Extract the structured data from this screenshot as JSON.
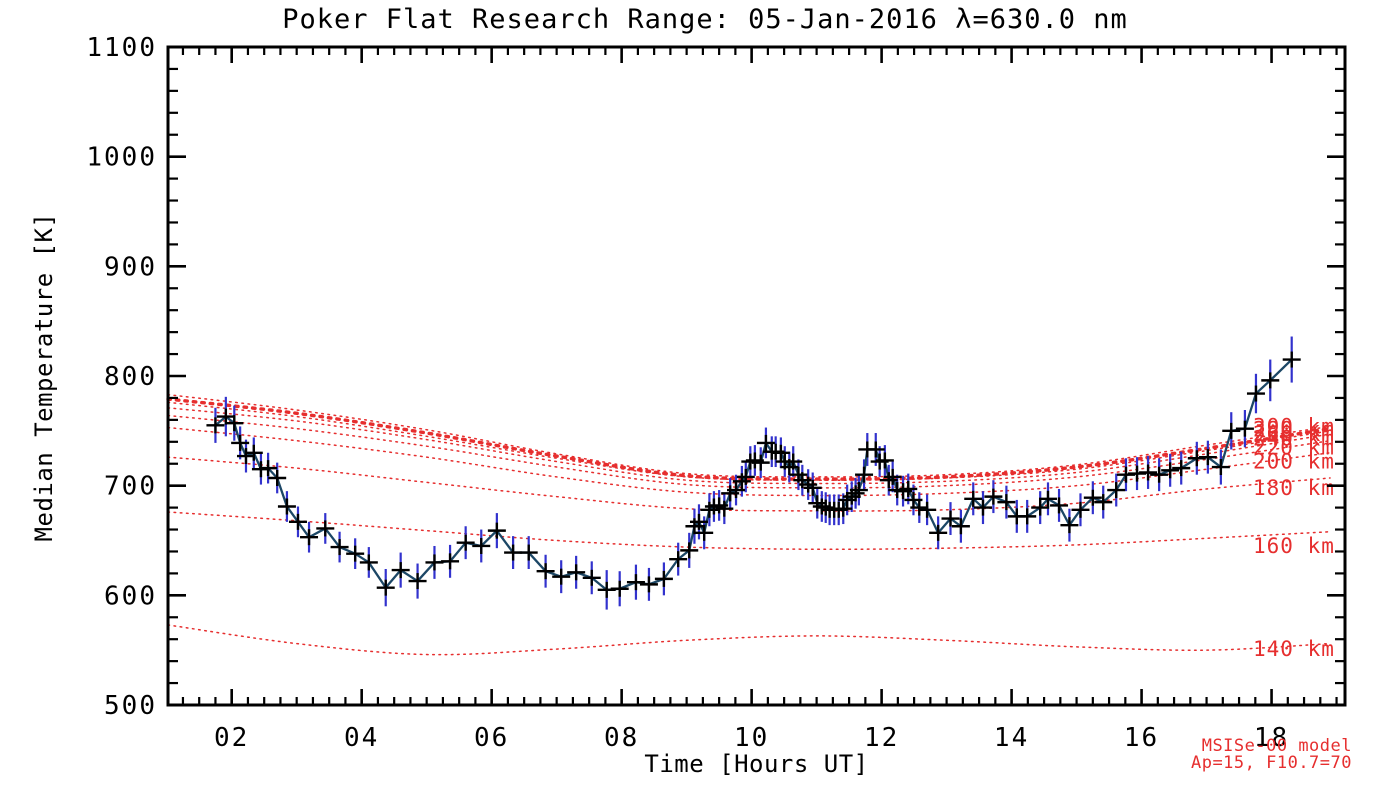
{
  "chart_data": {
    "type": "line",
    "title": "Poker Flat Research Range: 05-Jan-2016 λ=630.0 nm",
    "xlabel": "Time [Hours UT]",
    "ylabel": "Median Temperature [K]",
    "xlim": [
      1.02,
      19.13
    ],
    "ylim": [
      500,
      1100
    ],
    "x_major_ticks": [
      2,
      4,
      6,
      8,
      10,
      12,
      14,
      16,
      18
    ],
    "x_tick_labels": [
      "02",
      "04",
      "06",
      "08",
      "10",
      "12",
      "14",
      "16",
      "18"
    ],
    "x_minor_step": 0.25,
    "y_major_step": 100,
    "y_minor_step": 20,
    "y_tick_labels": [
      "500",
      "600",
      "700",
      "800",
      "900",
      "1000",
      "1100"
    ],
    "grid": false,
    "legend_position": "none",
    "colors": {
      "axis": "#000000",
      "data_line": "#1c4766",
      "marker": "#000000",
      "error_bar": "#3232cd",
      "model": "#e62e2e"
    },
    "annotations": [
      "MSISe-00 model",
      "Ap=15, F10.7=70"
    ],
    "series": [
      {
        "name": "Median temperature (630.0 nm)",
        "marker": "plus",
        "points_format": [
          "hours_ut",
          "temperature_K",
          "error_K"
        ],
        "points": [
          [
            1.75,
            755,
            16
          ],
          [
            1.91,
            763,
            18
          ],
          [
            2.04,
            757,
            16
          ],
          [
            2.13,
            739,
            15
          ],
          [
            2.22,
            727,
            15
          ],
          [
            2.34,
            730,
            14
          ],
          [
            2.45,
            715,
            14
          ],
          [
            2.56,
            716,
            14
          ],
          [
            2.7,
            707,
            14
          ],
          [
            2.85,
            681,
            14
          ],
          [
            3.02,
            667,
            14
          ],
          [
            3.19,
            653,
            14
          ],
          [
            3.44,
            661,
            14
          ],
          [
            3.66,
            644,
            14
          ],
          [
            3.9,
            638,
            14
          ],
          [
            4.11,
            630,
            14
          ],
          [
            4.37,
            607,
            17
          ],
          [
            4.6,
            623,
            16
          ],
          [
            4.86,
            613,
            16
          ],
          [
            5.12,
            630,
            15
          ],
          [
            5.36,
            631,
            15
          ],
          [
            5.6,
            648,
            15
          ],
          [
            5.84,
            645,
            15
          ],
          [
            6.08,
            659,
            16
          ],
          [
            6.33,
            639,
            15
          ],
          [
            6.57,
            639,
            15
          ],
          [
            6.83,
            622,
            15
          ],
          [
            7.07,
            617,
            15
          ],
          [
            7.3,
            621,
            15
          ],
          [
            7.54,
            616,
            15
          ],
          [
            7.77,
            605,
            18
          ],
          [
            7.97,
            606,
            16
          ],
          [
            8.22,
            612,
            16
          ],
          [
            8.42,
            610,
            15
          ],
          [
            8.65,
            615,
            15
          ],
          [
            8.87,
            633,
            15
          ],
          [
            9.04,
            641,
            16
          ],
          [
            9.12,
            663,
            16
          ],
          [
            9.19,
            667,
            16
          ],
          [
            9.27,
            657,
            15
          ],
          [
            9.35,
            678,
            15
          ],
          [
            9.42,
            681,
            14
          ],
          [
            9.5,
            682,
            14
          ],
          [
            9.58,
            679,
            14
          ],
          [
            9.67,
            693,
            14
          ],
          [
            9.76,
            696,
            14
          ],
          [
            9.85,
            704,
            14
          ],
          [
            9.91,
            708,
            14
          ],
          [
            9.98,
            722,
            14
          ],
          [
            10.05,
            723,
            14
          ],
          [
            10.14,
            721,
            14
          ],
          [
            10.22,
            739,
            14
          ],
          [
            10.31,
            731,
            14
          ],
          [
            10.37,
            731,
            14
          ],
          [
            10.45,
            730,
            14
          ],
          [
            10.51,
            722,
            14
          ],
          [
            10.58,
            717,
            14
          ],
          [
            10.64,
            722,
            14
          ],
          [
            10.72,
            710,
            14
          ],
          [
            10.78,
            705,
            14
          ],
          [
            10.87,
            701,
            14
          ],
          [
            10.94,
            698,
            14
          ],
          [
            11.01,
            684,
            14
          ],
          [
            11.08,
            681,
            14
          ],
          [
            11.14,
            680,
            14
          ],
          [
            11.2,
            678,
            14
          ],
          [
            11.27,
            678,
            14
          ],
          [
            11.34,
            678,
            14
          ],
          [
            11.41,
            679,
            14
          ],
          [
            11.47,
            687,
            14
          ],
          [
            11.54,
            690,
            14
          ],
          [
            11.6,
            693,
            14
          ],
          [
            11.65,
            696,
            14
          ],
          [
            11.73,
            710,
            14
          ],
          [
            11.78,
            733,
            15
          ],
          [
            11.91,
            733,
            15
          ],
          [
            11.97,
            722,
            14
          ],
          [
            12.05,
            723,
            14
          ],
          [
            12.11,
            705,
            14
          ],
          [
            12.17,
            708,
            14
          ],
          [
            12.24,
            696,
            14
          ],
          [
            12.33,
            695,
            14
          ],
          [
            12.41,
            697,
            14
          ],
          [
            12.49,
            687,
            14
          ],
          [
            12.58,
            680,
            14
          ],
          [
            12.7,
            678,
            14
          ],
          [
            12.87,
            657,
            15
          ],
          [
            13.06,
            670,
            15
          ],
          [
            13.22,
            663,
            15
          ],
          [
            13.41,
            688,
            15
          ],
          [
            13.56,
            680,
            15
          ],
          [
            13.72,
            690,
            15
          ],
          [
            13.92,
            685,
            15
          ],
          [
            14.08,
            672,
            15
          ],
          [
            14.24,
            672,
            15
          ],
          [
            14.44,
            680,
            15
          ],
          [
            14.56,
            688,
            15
          ],
          [
            14.73,
            682,
            15
          ],
          [
            14.89,
            664,
            15
          ],
          [
            15.06,
            678,
            15
          ],
          [
            15.25,
            689,
            15
          ],
          [
            15.41,
            685,
            15
          ],
          [
            15.61,
            696,
            15
          ],
          [
            15.76,
            710,
            15
          ],
          [
            15.93,
            711,
            15
          ],
          [
            16.1,
            712,
            15
          ],
          [
            16.27,
            710,
            15
          ],
          [
            16.44,
            714,
            15
          ],
          [
            16.61,
            716,
            15
          ],
          [
            16.85,
            725,
            15
          ],
          [
            17.02,
            726,
            15
          ],
          [
            17.22,
            717,
            16
          ],
          [
            17.38,
            750,
            17
          ],
          [
            17.59,
            752,
            17
          ],
          [
            17.76,
            784,
            18
          ],
          [
            17.98,
            796,
            19
          ],
          [
            18.31,
            815,
            21
          ]
        ]
      }
    ],
    "model_t": [
      1.02,
      3,
      5,
      7,
      9,
      11,
      13,
      15,
      17,
      18.9
    ],
    "model_curves": [
      {
        "label": "300 km",
        "label_T": 754,
        "thick": false,
        "T": [
          783,
          769,
          751,
          729,
          711,
          708,
          710,
          719,
          737,
          754
        ]
      },
      {
        "label": "280 km",
        "label_T": 751,
        "thick": true,
        "T": [
          779,
          766,
          748,
          727,
          709,
          706,
          708,
          717,
          734,
          752
        ]
      },
      {
        "label": "260 km",
        "label_T": 747,
        "thick": false,
        "T": [
          776,
          763,
          745,
          725,
          708,
          705,
          707,
          715,
          732,
          750
        ]
      },
      {
        "label": "240 km",
        "label_T": 743,
        "thick": false,
        "T": [
          771,
          759,
          742,
          722,
          705,
          702,
          704,
          712,
          729,
          747
        ]
      },
      {
        "label": "220 km",
        "label_T": 735,
        "thick": false,
        "T": [
          764,
          752,
          736,
          717,
          701,
          698,
          700,
          708,
          724,
          741
        ]
      },
      {
        "label": "200 km",
        "label_T": 722,
        "thick": false,
        "T": [
          753,
          741,
          726,
          708,
          694,
          691,
          693,
          700,
          715,
          730
        ]
      },
      {
        "label": "180 km",
        "label_T": 698,
        "thick": false,
        "T": [
          726,
          716,
          703,
          690,
          679,
          677,
          678,
          684,
          697,
          707
        ]
      },
      {
        "label": "160 km",
        "label_T": 645,
        "thick": false,
        "T": [
          676,
          668,
          659,
          650,
          644,
          642,
          643,
          646,
          652,
          658
        ]
      },
      {
        "label": "140 km",
        "label_T": 551,
        "thick": false,
        "T": [
          573,
          556,
          546,
          551,
          559,
          563,
          559,
          553,
          550,
          556
        ]
      }
    ]
  }
}
